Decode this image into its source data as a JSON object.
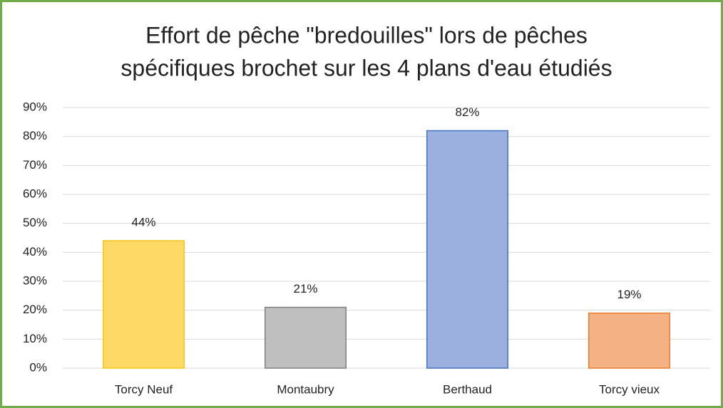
{
  "chart_data": {
    "type": "bar",
    "title": [
      "Effort de pêche \"bredouilles\" lors de pêches",
      "spécifiques brochet sur les 4 plans d'eau étudiés"
    ],
    "categories": [
      "Torcy Neuf",
      "Montaubry",
      "Berthaud",
      "Torcy vieux"
    ],
    "values": [
      44,
      21,
      82,
      19
    ],
    "value_labels": [
      "44%",
      "21%",
      "82%",
      "19%"
    ],
    "colors": [
      "#ffd966",
      "#bfbfbf",
      "#9cb0e0",
      "#f4b183"
    ],
    "edge_colors": [
      "#f5c518",
      "#7f7f7f",
      "#4472c4",
      "#ed7d31"
    ],
    "ylim": [
      0,
      90
    ],
    "yticks": [
      {
        "value": 0,
        "label": "0%"
      },
      {
        "value": 10,
        "label": "10%"
      },
      {
        "value": 20,
        "label": "20%"
      },
      {
        "value": 30,
        "label": "30%"
      },
      {
        "value": 40,
        "label": "40%"
      },
      {
        "value": 50,
        "label": "50%"
      },
      {
        "value": 60,
        "label": "60%"
      },
      {
        "value": 70,
        "label": "70%"
      },
      {
        "value": 80,
        "label": "80%"
      },
      {
        "value": 90,
        "label": "90%"
      }
    ],
    "grid": true
  }
}
